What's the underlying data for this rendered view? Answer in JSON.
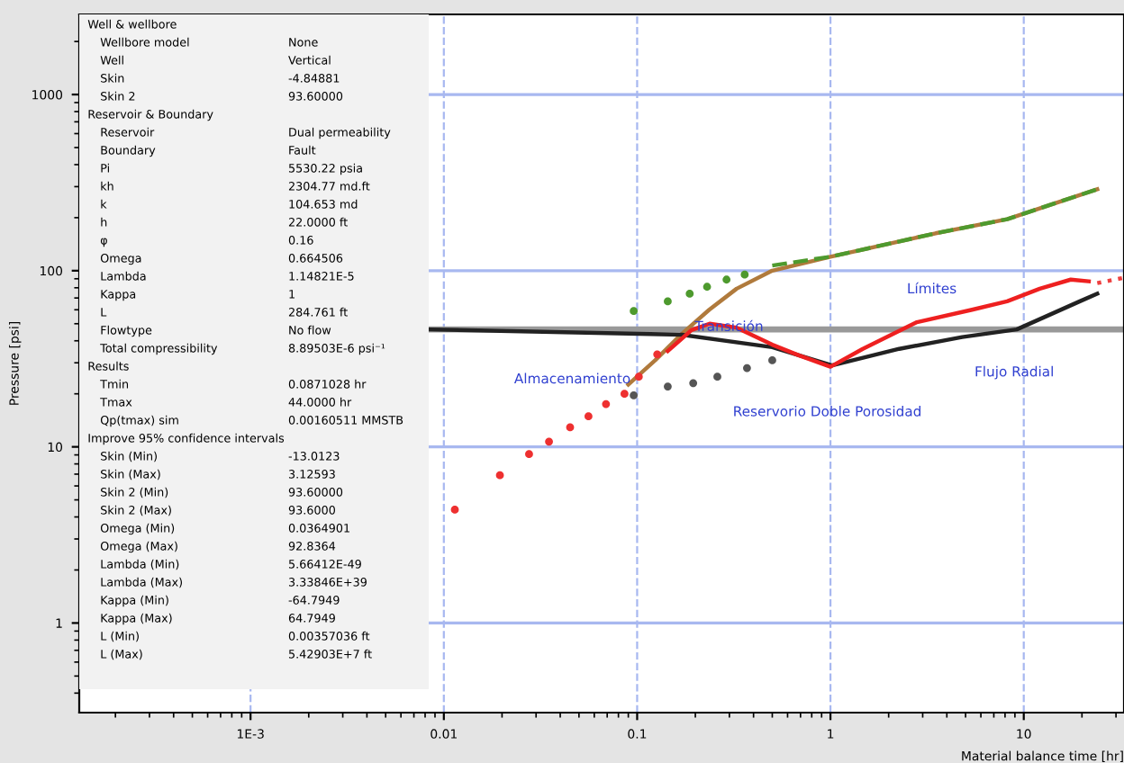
{
  "chart_data": {
    "type": "line",
    "xlabel": "Material balance time [hr]",
    "ylabel": "Pressure [psi]",
    "log": "xy",
    "grid": true,
    "legend": false,
    "xlim": [
      0.00013,
      33
    ],
    "ylim": [
      0.31,
      2850
    ],
    "xticks": [
      {
        "value": 0.001,
        "label": "1E-3"
      },
      0.01,
      0.1,
      1,
      10
    ],
    "yticks": [
      1,
      10,
      100,
      1000
    ],
    "series": [
      {
        "color": "#b07a3c",
        "x": [
          0.09,
          0.124,
          0.171,
          0.236,
          0.327,
          0.5,
          1,
          3.5,
          8.2,
          24
        ],
        "values": [
          22.6,
          31,
          44,
          60,
          79,
          100,
          120,
          163,
          196,
          290
        ]
      },
      {
        "type": "line",
        "line_style": "dashed",
        "color": "#4e9a2e",
        "x": [
          0.5,
          1,
          3.5,
          8.2,
          24
        ],
        "values": [
          107,
          120,
          163,
          196,
          290
        ]
      },
      {
        "type": "scatter",
        "marker": "circle",
        "color": "#4e9a2e",
        "x": [
          0.096,
          0.144,
          0.187,
          0.23,
          0.29,
          0.36
        ],
        "values": [
          59,
          67,
          74,
          81,
          89,
          95
        ]
      },
      {
        "type": "scatter",
        "marker": "circle",
        "color": "#ee3030",
        "x": [
          0.0114,
          0.0195,
          0.0276,
          0.035,
          0.045,
          0.056,
          0.069,
          0.086,
          0.102,
          0.127
        ],
        "values": [
          4.4,
          6.9,
          9.1,
          10.7,
          12.9,
          14.9,
          17.5,
          20,
          25,
          33.5
        ]
      },
      {
        "type": "scatter",
        "marker": "circle",
        "color": "#555555",
        "x": [
          0.096,
          0.144,
          0.195,
          0.26,
          0.37,
          0.5
        ],
        "values": [
          19.6,
          22,
          23,
          25,
          28,
          31
        ]
      },
      {
        "color": "#222222",
        "x": [
          0.0084,
          0.171,
          0.5,
          1.02,
          2.27,
          4.8,
          9.2,
          19.5,
          24
        ],
        "values": [
          46.4,
          43.3,
          36.8,
          29,
          36,
          42,
          46.4,
          67,
          74
        ]
      },
      {
        "color": "#ee2020",
        "x": [
          0.144,
          0.191,
          0.237,
          0.327,
          0.5,
          0.69,
          1,
          1.47,
          2.8,
          5.4,
          8.2,
          12.1,
          17.5,
          21.7
        ],
        "values": [
          35,
          46,
          50,
          47.5,
          38,
          33,
          28.5,
          36,
          51,
          60,
          67,
          79,
          89,
          87
        ]
      },
      {
        "type": "line",
        "line_style": "dotted",
        "color": "#ee4040",
        "x": [
          24,
          32.6
        ],
        "values": [
          85,
          91
        ]
      }
    ],
    "ref_lines": [
      {
        "axis": "y",
        "value": 46.4,
        "color": "#999999"
      }
    ],
    "annotations": [
      "Almacenamiento",
      "Transición",
      "Límites",
      "Flujo Radial",
      "Reservorio Doble Porosidad",
      "Well & wellbore",
      "Wellbore model\tNone",
      "Well\tVertical",
      "Skin\t-4.84881",
      "Skin 2\t93.60000",
      "Reservoir & Boundary",
      "Reservoir\tDual permeability",
      "Boundary\tFault",
      "Pi\t5530.22 psia",
      "kh\t2304.77 md.ft",
      "k\t104.653 md",
      "h\t22.0000 ft",
      "φ\t0.16",
      "Omega\t0.664506",
      "Lambda\t1.14821E-5",
      "Kappa\t1",
      "L\t284.761 ft",
      "Flowtype\tNo flow",
      "Total compressibility\t8.89503E-6 psi⁻¹",
      "Results",
      "Tmin\t0.0871028 hr",
      "Tmax\t44.0000 hr",
      "Qp(tmax) sim\t0.00160511 MMSTB",
      "Improve 95% confidence intervals",
      "Skin (Min)\t-13.0123",
      "Skin (Max)\t3.12593",
      "Skin 2 (Min)\t93.60000",
      "Skin 2 (Max)\t93.6000",
      "Omega (Min)\t0.0364901",
      "Omega (Max)\t92.8364",
      "Lambda (Min)\t5.66412E-49",
      "Lambda (Max)\t3.33846E+39",
      "Kappa (Min)\t-64.7949",
      "Kappa (Max)\t64.7949",
      "L (Min)\t0.00357036 ft",
      "L (Max)\t5.42903E+7 ft"
    ]
  }
}
